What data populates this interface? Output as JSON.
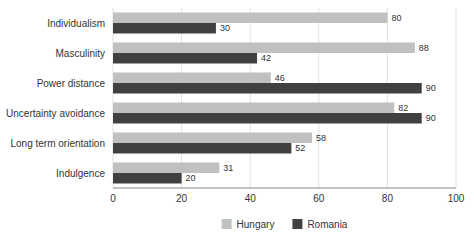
{
  "chart_data": {
    "type": "bar",
    "orientation": "horizontal",
    "categories": [
      "Individualism",
      "Masculinity",
      "Power distance",
      "Uncertainty avoidance",
      "Long term orientation",
      "Indulgence"
    ],
    "series": [
      {
        "name": "Hungary",
        "color": "#c0c0c0",
        "values": [
          80,
          88,
          46,
          82,
          58,
          31
        ]
      },
      {
        "name": "Romania",
        "color": "#404040",
        "values": [
          30,
          42,
          90,
          90,
          52,
          20
        ]
      }
    ],
    "xlim": [
      0,
      100
    ],
    "xticks": [
      0,
      20,
      40,
      60,
      80,
      100
    ],
    "grid": true,
    "data_labels": true,
    "legend": "bottom"
  }
}
